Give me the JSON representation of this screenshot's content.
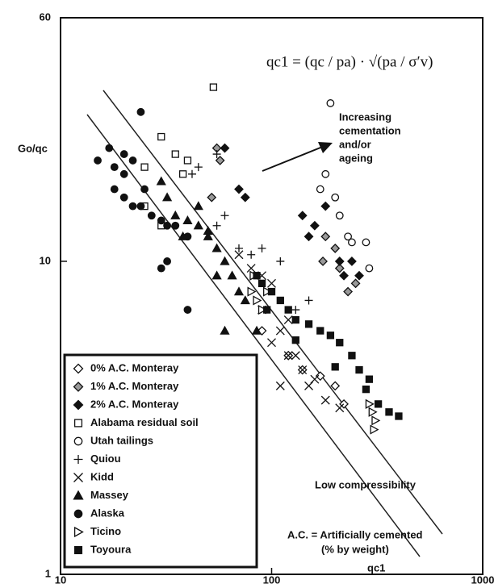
{
  "chart_data": {
    "type": "scatter",
    "xlabel": "qc1",
    "ylabel": "Go/qc",
    "log_x": true,
    "log_y": true,
    "xlim": [
      10,
      1000
    ],
    "xticks": [
      10,
      100,
      1000
    ],
    "ylim": [
      1,
      60
    ],
    "yticks": [
      1,
      10,
      60
    ],
    "formula": "qc1 = (qc / pa) · √(pa / σ′v)",
    "annotations": [
      "Increasing",
      "cementation",
      "and/or",
      "ageing",
      "Low compressibility",
      "A.C. = Artificially cemented",
      "(% by weight)"
    ],
    "series": [
      {
        "name": "0% A.C. Monteray",
        "marker": "diamond",
        "color": "#ffffff",
        "x": [
          140,
          170,
          200,
          220,
          120,
          90
        ],
        "y": [
          4.5,
          4.3,
          4,
          3.5,
          5,
          6
        ]
      },
      {
        "name": "1% A.C. Monteray",
        "marker": "diamond",
        "color": "#999999",
        "x": [
          55,
          57,
          52,
          180,
          200,
          210,
          230,
          250,
          175
        ],
        "y": [
          23,
          21,
          16,
          12,
          11,
          9.5,
          8,
          8.5,
          10
        ]
      },
      {
        "name": "2% A.C. Monteray",
        "marker": "diamond",
        "color": "#111111",
        "x": [
          60,
          70,
          75,
          140,
          150,
          180,
          210,
          240,
          220,
          260,
          160
        ],
        "y": [
          23,
          17,
          16,
          14,
          12,
          15,
          10,
          10,
          9,
          9,
          13
        ]
      },
      {
        "name": "Alabama residual soil",
        "marker": "square",
        "color": "#ffffff",
        "x": [
          53,
          30,
          35,
          40,
          38,
          25,
          30,
          25
        ],
        "y": [
          36,
          25,
          22,
          21,
          19,
          15,
          13,
          20
        ]
      },
      {
        "name": "Utah tailings",
        "marker": "circle",
        "color": "#ffffff",
        "x": [
          190,
          180,
          170,
          210,
          230,
          240,
          280,
          290,
          200
        ],
        "y": [
          32,
          19,
          17,
          14,
          12,
          11.5,
          11.5,
          9.5,
          16
        ]
      },
      {
        "name": "Quiou",
        "marker": "plus",
        "color": "#111111",
        "x": [
          55,
          42,
          45,
          60,
          70,
          80,
          90,
          110,
          130,
          150,
          55
        ],
        "y": [
          22,
          19,
          20,
          14,
          11,
          10.5,
          11,
          10,
          7,
          7.5,
          13
        ]
      },
      {
        "name": "Kidd",
        "marker": "cross",
        "color": "#111111",
        "x": [
          70,
          80,
          90,
          100,
          110,
          100,
          120,
          130,
          140,
          110,
          150,
          160,
          180,
          210,
          90,
          120
        ],
        "y": [
          10.5,
          9.5,
          9,
          8.5,
          6,
          5.5,
          5,
          5,
          4.5,
          4,
          4,
          4.2,
          3.6,
          3.4,
          7,
          6.5
        ]
      },
      {
        "name": "Massey",
        "marker": "triangle",
        "color": "#111111",
        "x": [
          30,
          32,
          35,
          40,
          45,
          50,
          55,
          60,
          65,
          70,
          75,
          55,
          60,
          85,
          50,
          38,
          45
        ],
        "y": [
          18,
          16,
          14,
          13.5,
          13,
          12,
          11,
          10,
          9,
          8,
          7.5,
          9,
          6,
          6,
          12.5,
          12,
          15
        ]
      },
      {
        "name": "Alaska",
        "marker": "circle",
        "color": "#111111",
        "x": [
          15,
          17,
          18,
          20,
          22,
          18,
          20,
          22,
          24,
          25,
          27,
          30,
          32,
          35,
          40,
          24,
          30,
          32,
          40,
          20
        ],
        "y": [
          21,
          23,
          20,
          22,
          21,
          17,
          16,
          15,
          15,
          17,
          14,
          13.5,
          13,
          13,
          12,
          30,
          9.5,
          10,
          7,
          19
        ]
      },
      {
        "name": "Ticino",
        "marker": "triangle-right",
        "color": "#ffffff",
        "x": [
          80,
          85,
          90,
          82,
          95,
          290,
          300,
          310,
          305
        ],
        "y": [
          8,
          7.5,
          7,
          9,
          8,
          3.5,
          3.3,
          3.1,
          2.9
        ]
      },
      {
        "name": "Toyoura",
        "marker": "square",
        "color": "#111111",
        "x": [
          85,
          90,
          100,
          110,
          120,
          130,
          150,
          170,
          190,
          210,
          240,
          260,
          290,
          320,
          360,
          400,
          95,
          130,
          200,
          280
        ],
        "y": [
          9,
          8.5,
          8,
          7.5,
          7,
          6.5,
          6.3,
          6,
          5.8,
          5.5,
          5,
          4.5,
          4.2,
          3.5,
          3.3,
          3.2,
          7,
          5.6,
          4.6,
          3.9
        ]
      }
    ]
  }
}
